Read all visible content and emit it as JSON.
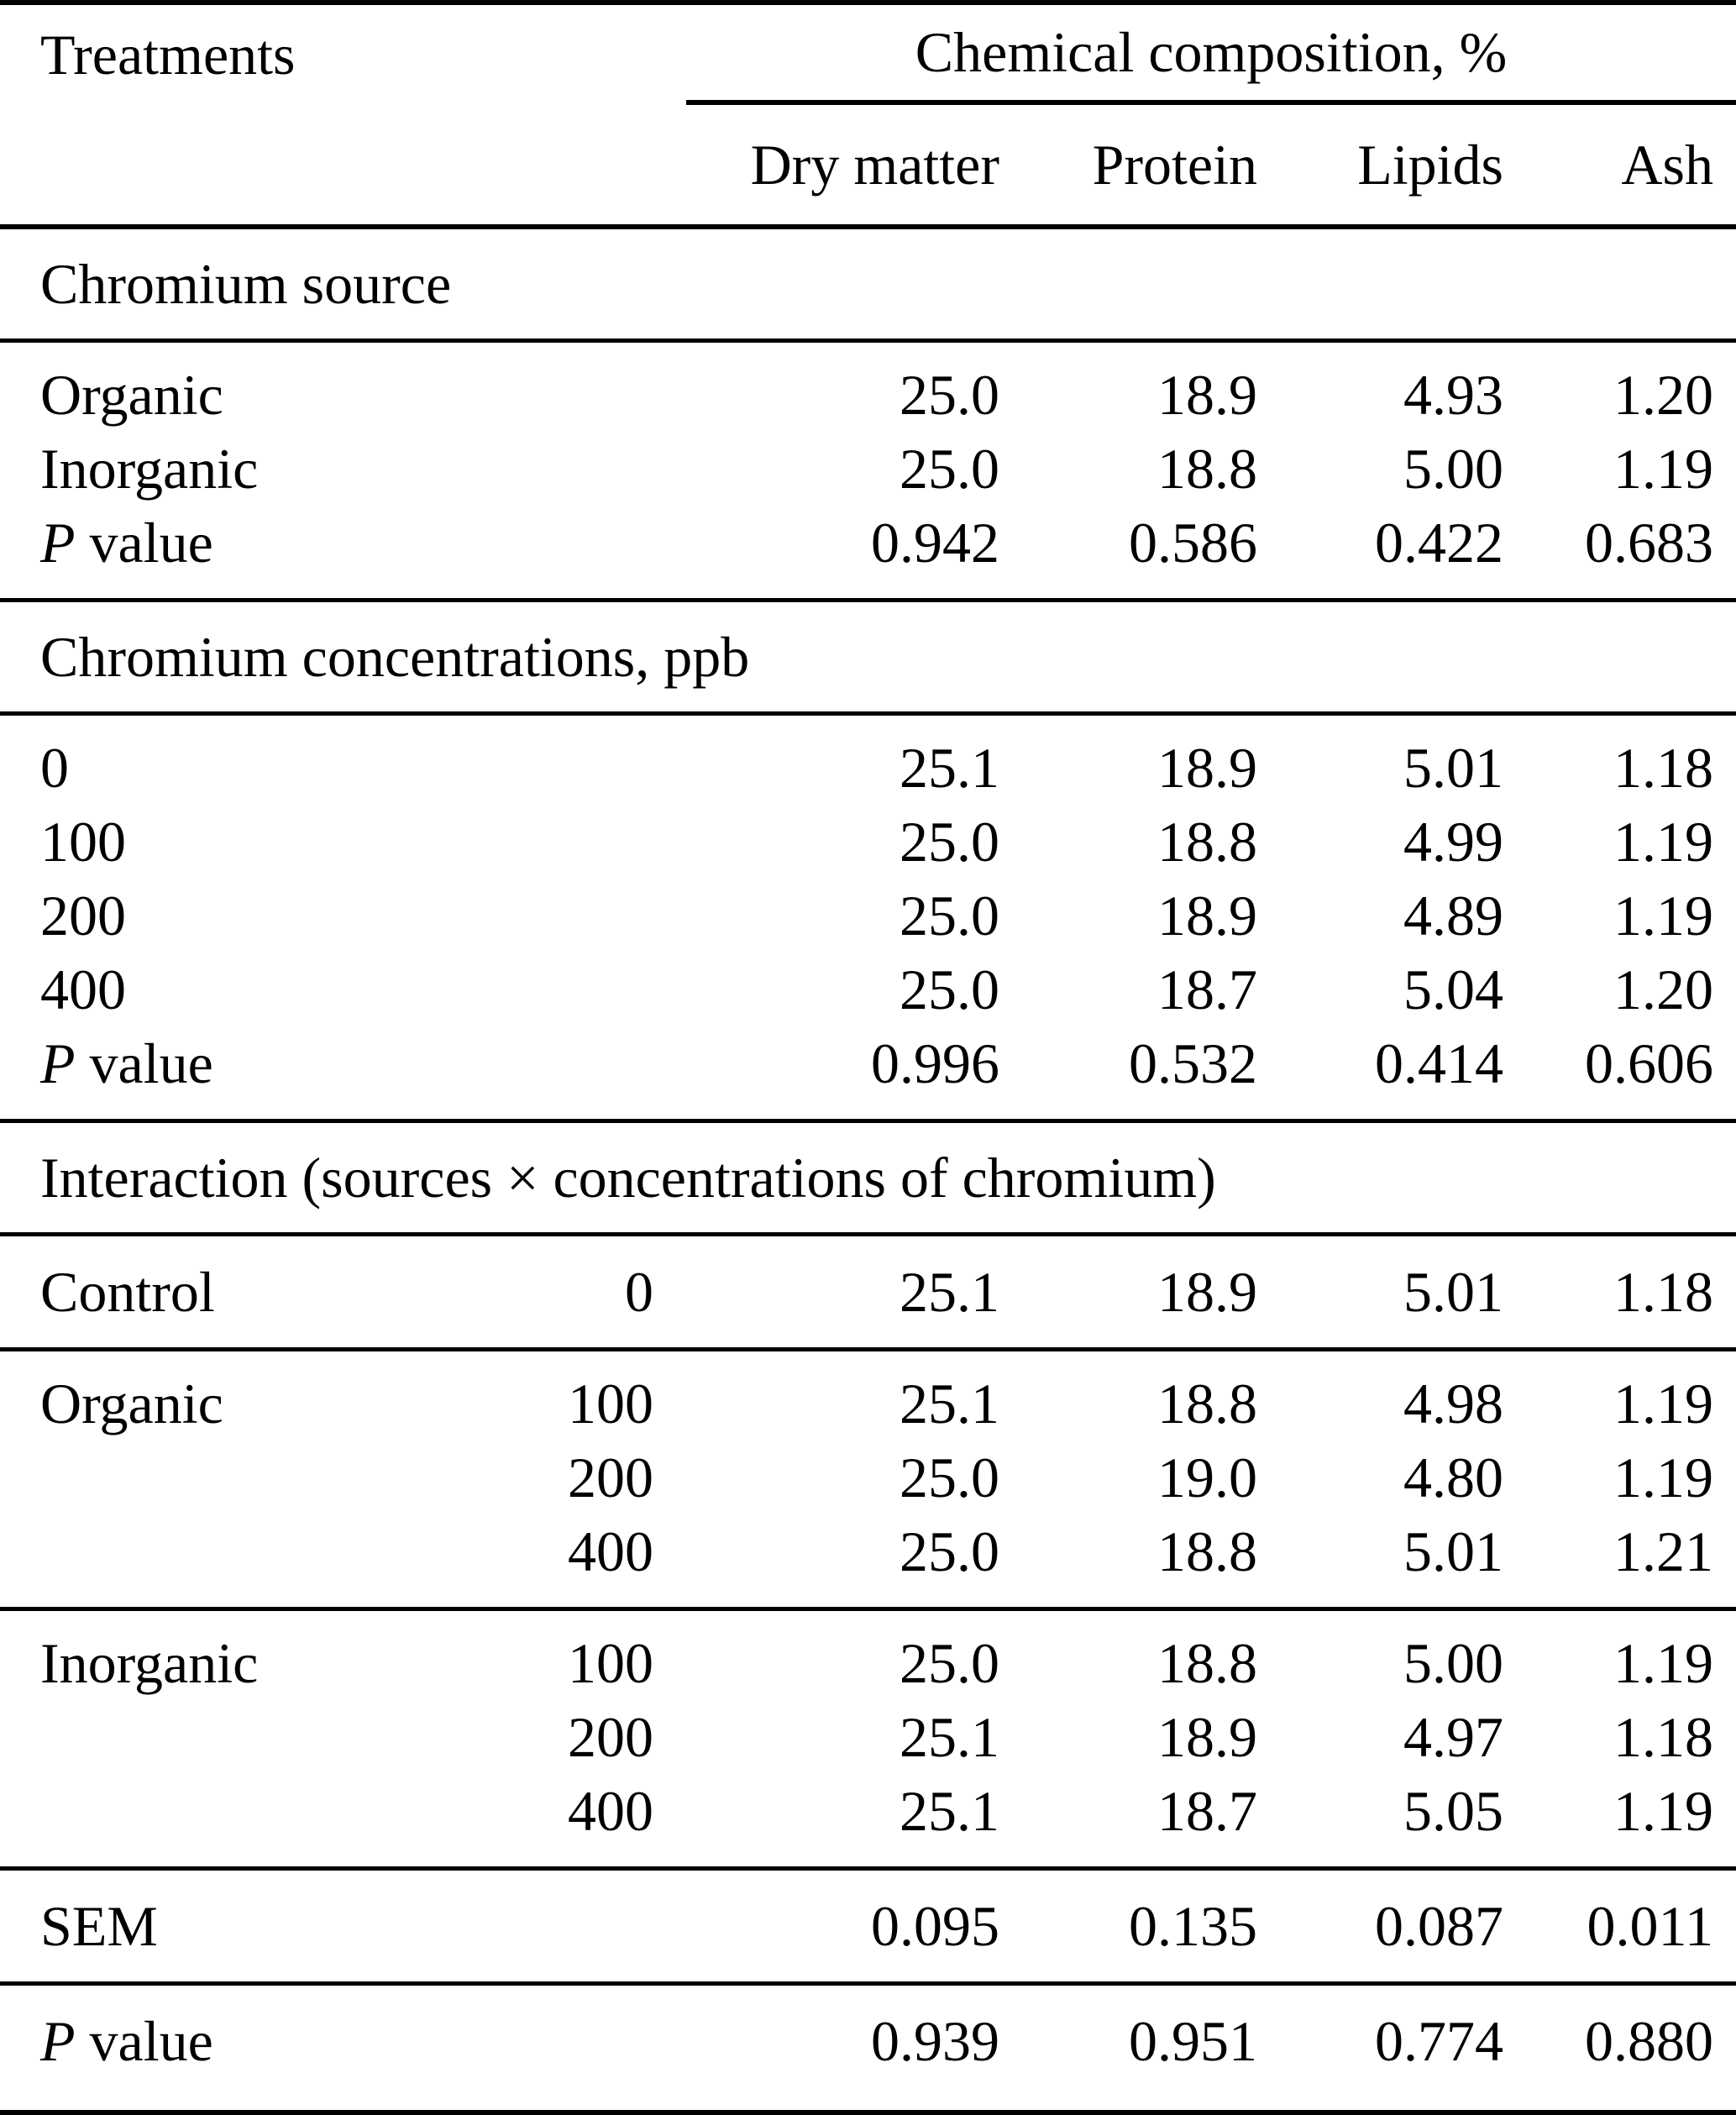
{
  "theme": {
    "text_color": "#000000",
    "background_color": "#ffffff",
    "rule_color": "#000000"
  },
  "header": {
    "treatments_label": "Treatments",
    "group_label": "Chemical composition, %",
    "columns": [
      "Dry matter",
      "Protein",
      "Lipids",
      "Ash"
    ]
  },
  "sections": [
    {
      "type": "section-title",
      "title": "Chromium source"
    },
    {
      "type": "rows",
      "rows": [
        {
          "label": "Organic",
          "conc": "",
          "values": [
            "25.0",
            "18.9",
            "4.93",
            "1.20"
          ]
        },
        {
          "label": "Inorganic",
          "conc": "",
          "values": [
            "25.0",
            "18.8",
            "5.00",
            "1.19"
          ]
        },
        {
          "label": "P value",
          "italic_chars": 1,
          "conc": "",
          "values": [
            "0.942",
            "0.586",
            "0.422",
            "0.683"
          ]
        }
      ]
    },
    {
      "type": "section-title",
      "title": "Chromium concentrations, ppb"
    },
    {
      "type": "rows",
      "rows": [
        {
          "label": "0",
          "conc": "",
          "values": [
            "25.1",
            "18.9",
            "5.01",
            "1.18"
          ]
        },
        {
          "label": "100",
          "conc": "",
          "values": [
            "25.0",
            "18.8",
            "4.99",
            "1.19"
          ]
        },
        {
          "label": "200",
          "conc": "",
          "values": [
            "25.0",
            "18.9",
            "4.89",
            "1.19"
          ]
        },
        {
          "label": "400",
          "conc": "",
          "values": [
            "25.0",
            "18.7",
            "5.04",
            "1.20"
          ]
        },
        {
          "label": "P value",
          "italic_chars": 1,
          "conc": "",
          "values": [
            "0.996",
            "0.532",
            "0.414",
            "0.606"
          ]
        }
      ]
    },
    {
      "type": "section-title",
      "title": "Interaction (sources × concentrations of chromium)"
    },
    {
      "type": "rows",
      "rows": [
        {
          "label": "Control",
          "conc": "0",
          "values": [
            "25.1",
            "18.9",
            "5.01",
            "1.18"
          ]
        }
      ]
    },
    {
      "type": "rows",
      "rows": [
        {
          "label": "Organic",
          "conc": "100",
          "values": [
            "25.1",
            "18.8",
            "4.98",
            "1.19"
          ]
        },
        {
          "label": "",
          "conc": "200",
          "values": [
            "25.0",
            "19.0",
            "4.80",
            "1.19"
          ]
        },
        {
          "label": "",
          "conc": "400",
          "values": [
            "25.0",
            "18.8",
            "5.01",
            "1.21"
          ]
        }
      ]
    },
    {
      "type": "rows",
      "rows": [
        {
          "label": "Inorganic",
          "conc": "100",
          "values": [
            "25.0",
            "18.8",
            "5.00",
            "1.19"
          ]
        },
        {
          "label": "",
          "conc": "200",
          "values": [
            "25.1",
            "18.9",
            "4.97",
            "1.18"
          ]
        },
        {
          "label": "",
          "conc": "400",
          "values": [
            "25.1",
            "18.7",
            "5.05",
            "1.19"
          ]
        }
      ]
    },
    {
      "type": "rows",
      "rows": [
        {
          "label": "SEM",
          "conc": "",
          "values": [
            "0.095",
            "0.135",
            "0.087",
            "0.011"
          ]
        }
      ]
    },
    {
      "type": "rows",
      "rows": [
        {
          "label": "P value",
          "italic_chars": 1,
          "conc": "",
          "values": [
            "0.939",
            "0.951",
            "0.774",
            "0.880"
          ]
        }
      ]
    }
  ]
}
